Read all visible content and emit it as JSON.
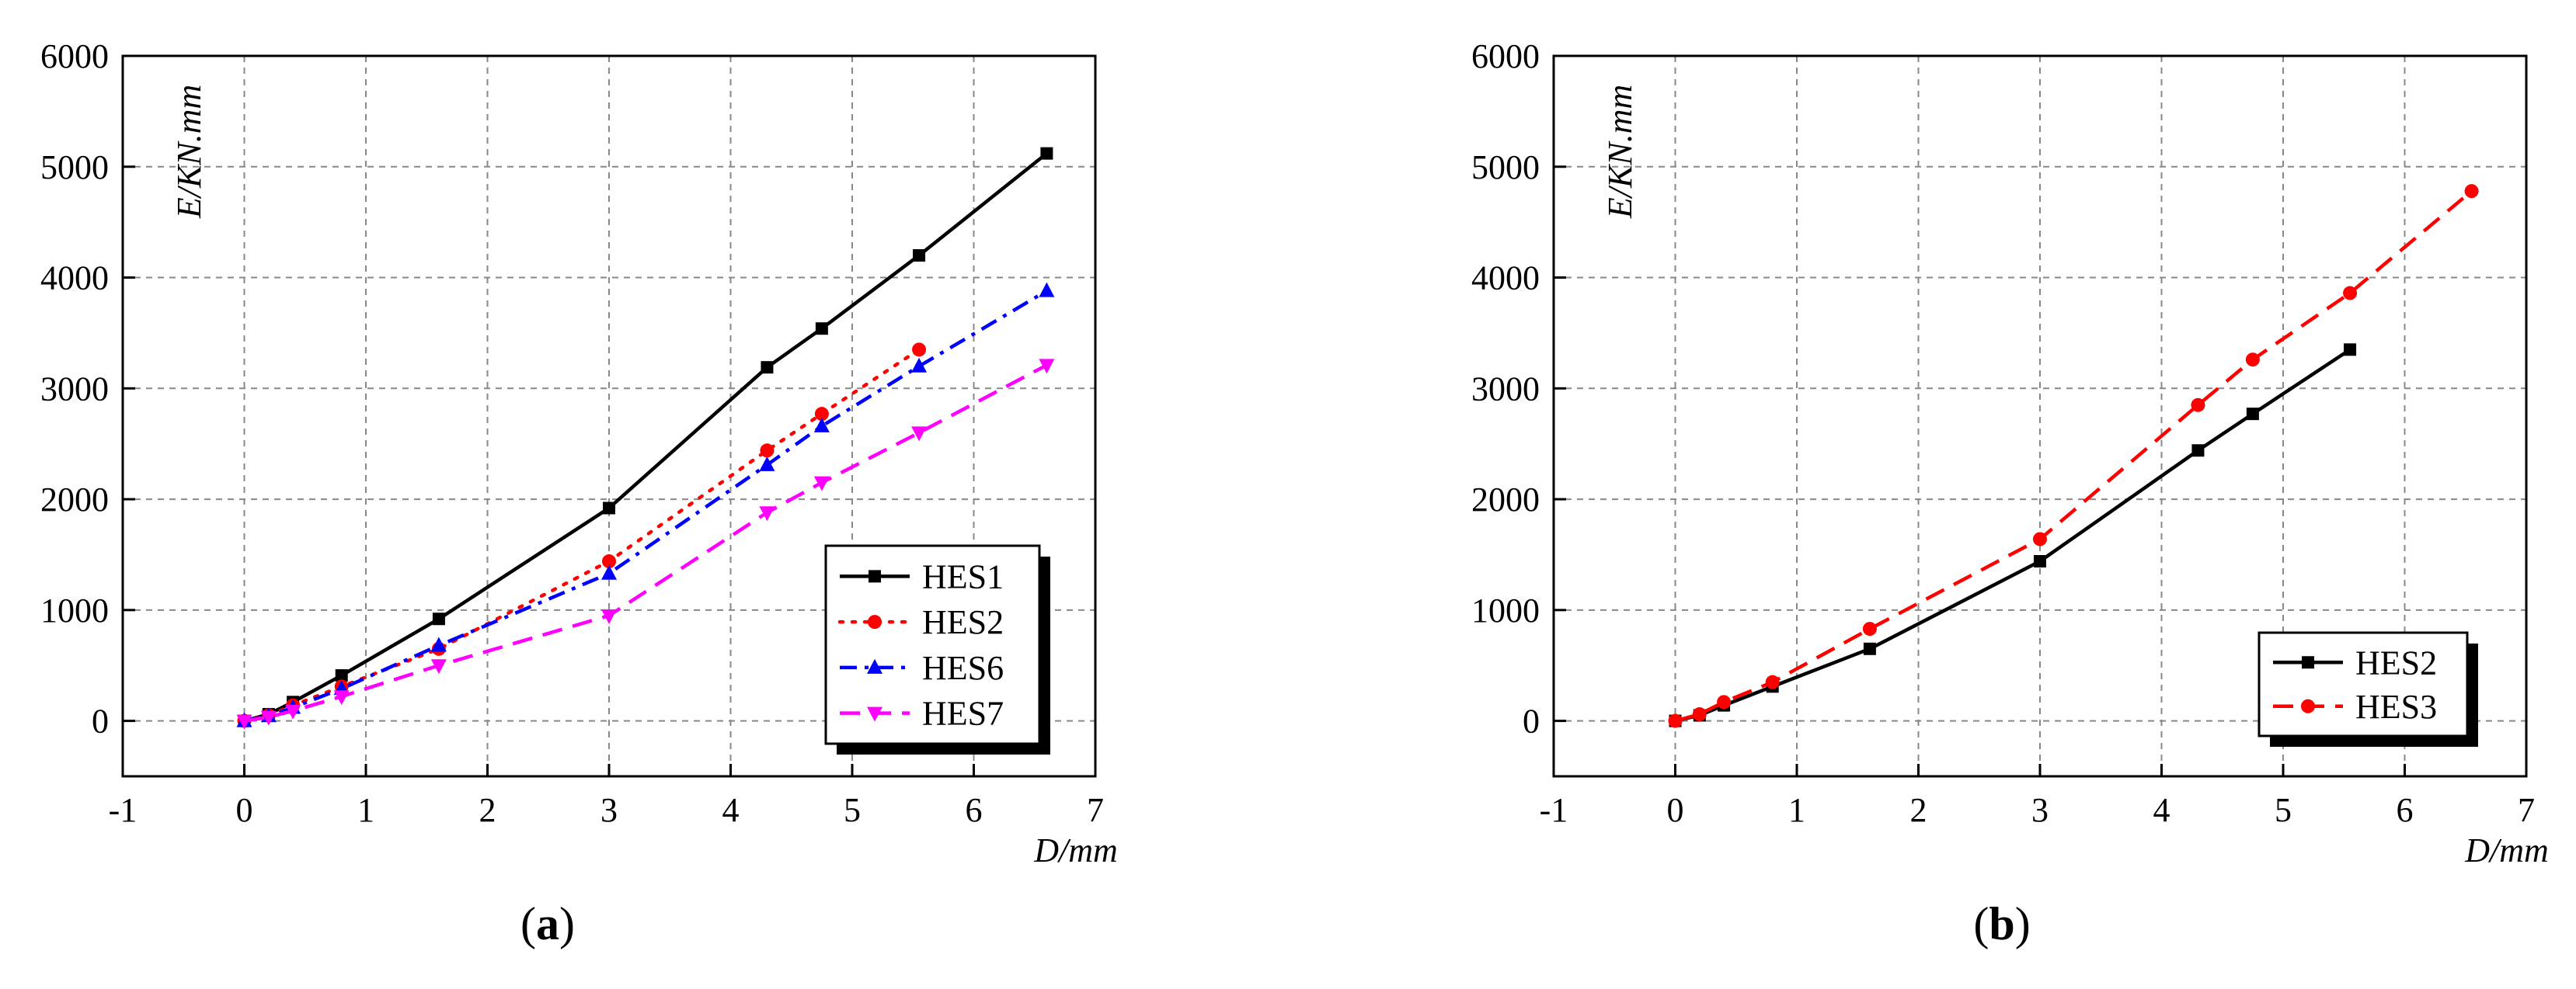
{
  "chart_data": [
    {
      "type": "line",
      "panel_label": "a",
      "caption_open": "(",
      "caption_close": ")",
      "xlabel": "D/mm",
      "ylabel": "E/KN.mm",
      "xlim": [
        -1,
        7
      ],
      "ylim": [
        -500,
        6000
      ],
      "xticks": [
        -1,
        0,
        1,
        2,
        3,
        4,
        5,
        6,
        7
      ],
      "yticks": [
        0,
        1000,
        2000,
        3000,
        4000,
        5000,
        6000
      ],
      "grid": true,
      "legend_position": "bottom-right",
      "series": [
        {
          "name": "HES1",
          "color": "#000000",
          "marker": "square",
          "dash": "solid",
          "x": [
            0,
            0.2,
            0.4,
            0.8,
            1.6,
            3.0,
            4.3,
            4.75,
            5.55,
            6.6
          ],
          "y": [
            0,
            60,
            170,
            410,
            920,
            1920,
            3190,
            3540,
            4200,
            5120
          ]
        },
        {
          "name": "HES2",
          "color": "#ff0000",
          "marker": "circle",
          "dash": "dot",
          "x": [
            0,
            0.2,
            0.4,
            0.8,
            1.6,
            3.0,
            4.3,
            4.75,
            5.55
          ],
          "y": [
            0,
            50,
            140,
            310,
            650,
            1440,
            2440,
            2770,
            3350
          ]
        },
        {
          "name": "HES6",
          "color": "#0000ff",
          "marker": "triangle-up",
          "dash": "dashdot",
          "x": [
            0,
            0.2,
            0.4,
            0.8,
            1.6,
            3.0,
            4.3,
            4.75,
            5.55,
            6.6
          ],
          "y": [
            0,
            45,
            120,
            290,
            680,
            1330,
            2310,
            2660,
            3200,
            3880
          ]
        },
        {
          "name": "HES7",
          "color": "#ff00ff",
          "marker": "triangle-down",
          "dash": "dash",
          "x": [
            0,
            0.2,
            0.4,
            0.8,
            1.6,
            3.0,
            4.3,
            4.75,
            5.55,
            6.6
          ],
          "y": [
            0,
            35,
            90,
            220,
            500,
            950,
            1880,
            2150,
            2600,
            3210
          ]
        }
      ]
    },
    {
      "type": "line",
      "panel_label": "b",
      "caption_open": "(",
      "caption_close": ")",
      "xlabel": "D/mm",
      "ylabel": "E/KN.mm",
      "xlim": [
        -1,
        7
      ],
      "ylim": [
        -500,
        6000
      ],
      "xticks": [
        -1,
        0,
        1,
        2,
        3,
        4,
        5,
        6,
        7
      ],
      "yticks": [
        0,
        1000,
        2000,
        3000,
        4000,
        5000,
        6000
      ],
      "grid": true,
      "legend_position": "bottom-right",
      "series": [
        {
          "name": "HES2",
          "color": "#000000",
          "marker": "square",
          "dash": "solid",
          "x": [
            0,
            0.2,
            0.4,
            0.8,
            1.6,
            3.0,
            4.3,
            4.75,
            5.55
          ],
          "y": [
            0,
            50,
            140,
            310,
            650,
            1440,
            2440,
            2770,
            3350
          ]
        },
        {
          "name": "HES3",
          "color": "#ff0000",
          "marker": "circle",
          "dash": "dash",
          "x": [
            0,
            0.2,
            0.4,
            0.8,
            1.6,
            3.0,
            4.3,
            4.75,
            5.55,
            6.55
          ],
          "y": [
            0,
            60,
            170,
            350,
            830,
            1640,
            2850,
            3260,
            3860,
            4780
          ]
        }
      ]
    }
  ]
}
